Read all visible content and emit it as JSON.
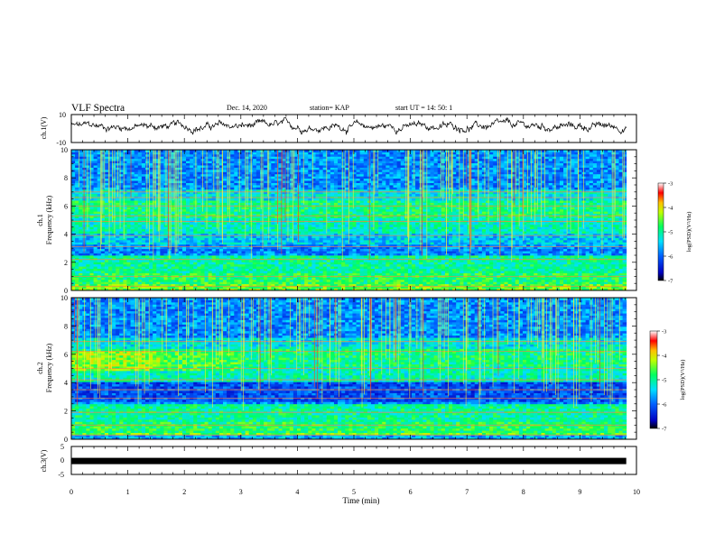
{
  "header": {
    "title": "VLF Spectra",
    "date": "Dec. 14, 2020",
    "station": "station= KAP",
    "start_ut": "start  UT =   14: 50: 1"
  },
  "chart_data": [
    {
      "type": "line",
      "id": "ch1-waveform",
      "ylabel": "ch.1(V)",
      "ylim": [
        -10,
        10
      ],
      "y_ticks": [
        "10",
        "-10"
      ],
      "xlim": [
        0,
        10
      ],
      "description_level": [
        0,
        2
      ]
    },
    {
      "type": "heatmap",
      "id": "ch1-spectrogram",
      "ylabel": "ch.1\nFrequency (kHz)",
      "ylabel_line1": "ch.1",
      "ylabel_line2": "Frequency (kHz)",
      "ylim": [
        0,
        10
      ],
      "y_ticks": [
        "0",
        "2",
        "4",
        "6",
        "8",
        "10"
      ],
      "xlim": [
        0,
        9.82
      ],
      "colorbar": {
        "range": [
          -7,
          -3
        ],
        "ticks": [
          "-3",
          "-4",
          "-5",
          "-6",
          "-7"
        ],
        "label": "log(PSD)(V²/Hz)"
      }
    },
    {
      "type": "heatmap",
      "id": "ch2-spectrogram",
      "ylabel_line1": "ch.2",
      "ylabel_line2": "Frequency (kHz)",
      "ylim": [
        0,
        10
      ],
      "y_ticks": [
        "0",
        "2",
        "4",
        "6",
        "8",
        "10"
      ],
      "xlim": [
        0,
        9.82
      ],
      "colorbar": {
        "range": [
          -7,
          -3
        ],
        "ticks": [
          "-3",
          "-4",
          "-5",
          "-6",
          "-7"
        ],
        "label": "log(PSD)(V²/Hz)"
      }
    },
    {
      "type": "line",
      "id": "ch3-signal",
      "ylabel": "ch.3(V)",
      "ylim": [
        -5,
        5
      ],
      "y_ticks": [
        "5",
        "0",
        "-5"
      ],
      "xlim": [
        0,
        10
      ],
      "level": -0.2,
      "xlabel": "Time  (min)",
      "x_ticks": [
        "0",
        "1",
        "2",
        "3",
        "4",
        "5",
        "6",
        "7",
        "8",
        "9",
        "10"
      ]
    }
  ],
  "colors": {
    "scale": [
      "#000080",
      "#0000ff",
      "#00a0ff",
      "#00ffff",
      "#00ff80",
      "#80ff00",
      "#ffff00",
      "#ff8000",
      "#ff0000",
      "#ff80c0",
      "#ffffff"
    ]
  }
}
